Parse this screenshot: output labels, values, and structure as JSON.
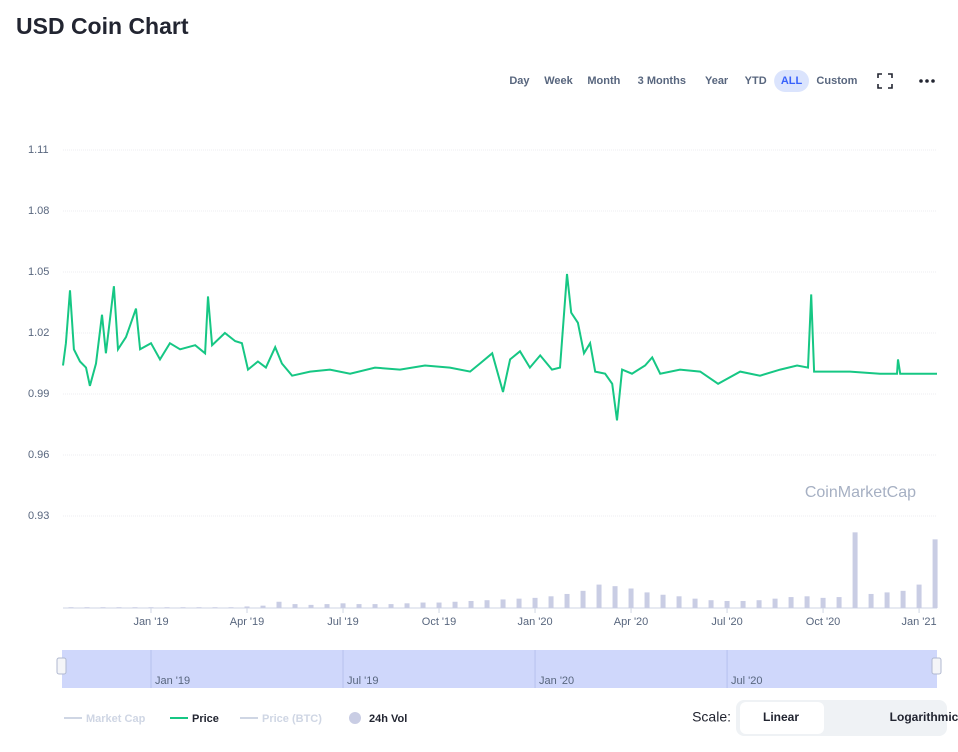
{
  "chart_data": {
    "type": "line",
    "title": "USD Coin Chart",
    "ranges": [
      "Day",
      "Week",
      "Month",
      "3 Months",
      "Year",
      "YTD",
      "ALL",
      "Custom"
    ],
    "active_range": 6,
    "watermark": "CoinMarketCap",
    "xlim": [
      -2.75,
      24.56
    ],
    "xticks": [
      {
        "value": 0,
        "label": "Jan '19"
      },
      {
        "value": 3,
        "label": "Apr '19"
      },
      {
        "value": 6,
        "label": "Jul '19"
      },
      {
        "value": 9,
        "label": "Oct '19"
      },
      {
        "value": 12,
        "label": "Jan '20"
      },
      {
        "value": 15,
        "label": "Apr '20"
      },
      {
        "value": 18,
        "label": "Jul '20"
      },
      {
        "value": 21,
        "label": "Oct '20"
      },
      {
        "value": 24,
        "label": "Jan '21"
      }
    ],
    "ylim": [
      0.93,
      1.11
    ],
    "yticks": [
      0.93,
      0.96,
      0.99,
      1.02,
      1.05,
      1.08,
      1.11
    ],
    "grid": true,
    "y2lim": [
      0,
      100
    ],
    "series": [
      {
        "name": "Price",
        "color": "#16c784",
        "x": [
          -2.75,
          -2.66,
          -2.53,
          -2.41,
          -2.22,
          -2.03,
          -1.91,
          -1.72,
          -1.53,
          -1.41,
          -1.16,
          -1.03,
          -0.78,
          -0.47,
          -0.34,
          0,
          0.28,
          0.59,
          0.91,
          1.38,
          1.69,
          1.78,
          1.91,
          2.31,
          2.63,
          2.84,
          3.03,
          3.34,
          3.59,
          3.88,
          4.09,
          4.41,
          4.97,
          5.59,
          6.22,
          7.0,
          7.78,
          8.56,
          9.34,
          9.97,
          10.28,
          10.66,
          11.0,
          11.22,
          11.53,
          11.84,
          12.16,
          12.53,
          12.78,
          13.0,
          13.13,
          13.34,
          13.53,
          13.72,
          13.88,
          14.19,
          14.41,
          14.56,
          14.72,
          15.03,
          15.44,
          15.66,
          15.91,
          16.53,
          17.16,
          17.72,
          18.41,
          19.03,
          19.66,
          20.19,
          20.53,
          20.63,
          20.72,
          21.84,
          22.78,
          23.31,
          23.34,
          23.41,
          24.56
        ],
        "values": [
          1.004,
          1.015,
          1.041,
          1.012,
          1.006,
          1.003,
          0.994,
          1.005,
          1.029,
          1.01,
          1.043,
          1.012,
          1.018,
          1.032,
          1.012,
          1.015,
          1.007,
          1.015,
          1.012,
          1.014,
          1.01,
          1.038,
          1.014,
          1.02,
          1.016,
          1.015,
          1.002,
          1.006,
          1.003,
          1.013,
          1.005,
          0.999,
          1.001,
          1.002,
          1.0,
          1.003,
          1.002,
          1.004,
          1.003,
          1.001,
          1.005,
          1.01,
          0.991,
          1.007,
          1.011,
          1.003,
          1.009,
          1.002,
          1.003,
          1.049,
          1.03,
          1.025,
          1.01,
          1.015,
          1.001,
          1.0,
          0.995,
          0.977,
          1.002,
          1.0,
          1.004,
          1.008,
          1.0,
          1.002,
          1.001,
          0.995,
          1.001,
          0.999,
          1.002,
          1.004,
          1.003,
          1.039,
          1.001,
          1.001,
          1.0,
          1.0,
          1.007,
          1.0,
          1.0
        ]
      },
      {
        "name": "24h Vol",
        "color": "#c9cde4",
        "type": "bar",
        "axis": "y2",
        "x": [
          -2.5,
          -2,
          -1.5,
          -1,
          -0.5,
          0,
          0.5,
          1,
          1.5,
          2,
          2.5,
          3,
          3.5,
          4,
          4.5,
          5,
          5.5,
          6,
          6.5,
          7,
          7.5,
          8,
          8.5,
          9,
          9.5,
          10,
          10.5,
          11,
          11.5,
          12,
          12.5,
          13,
          13.5,
          14,
          14.5,
          15,
          15.5,
          16,
          16.5,
          17,
          17.5,
          18,
          18.5,
          19,
          19.5,
          20,
          20.5,
          21,
          21.5,
          22,
          22.5,
          23,
          23.5,
          24,
          24.5
        ],
        "values": [
          1,
          1,
          1,
          1,
          1,
          1,
          1,
          1,
          1,
          1,
          1,
          2,
          3,
          8,
          5,
          4,
          5,
          6,
          5,
          5,
          5,
          6,
          7,
          7,
          8,
          9,
          10,
          11,
          12,
          13,
          15,
          18,
          22,
          30,
          28,
          25,
          20,
          17,
          15,
          12,
          10,
          9,
          9,
          10,
          12,
          14,
          15,
          13,
          14,
          97,
          18,
          20,
          22,
          30,
          88
        ]
      }
    ],
    "legend_inactive": [
      "Market Cap",
      "Price (BTC)"
    ],
    "navigator_xticks": [
      {
        "value": 0,
        "label": "Jan '19"
      },
      {
        "value": 6,
        "label": "Jul '19"
      },
      {
        "value": 12,
        "label": "Jan '20"
      },
      {
        "value": 18,
        "label": "Jul '20"
      }
    ],
    "scale_label": "Scale:",
    "scale_options": [
      "Linear",
      "Logarithmic"
    ],
    "scale_active": 0
  }
}
